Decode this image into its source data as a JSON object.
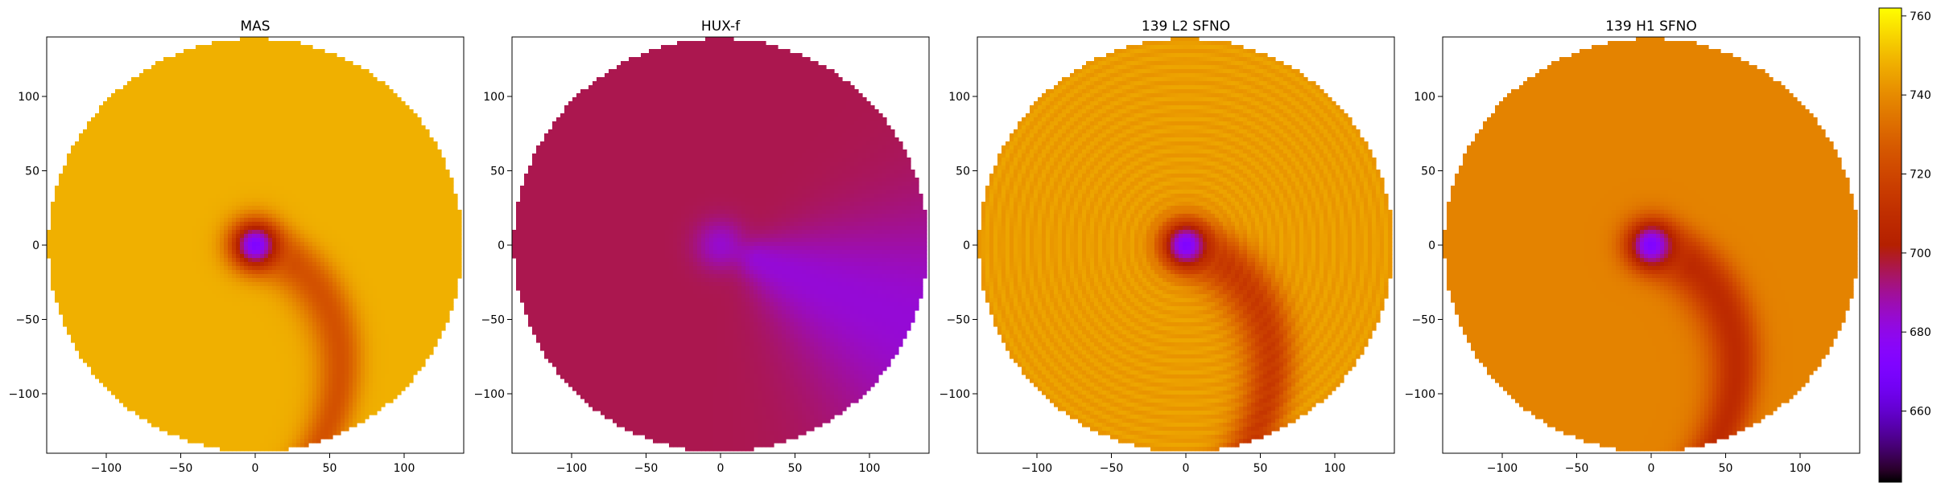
{
  "chart_data": [
    {
      "type": "heatmap",
      "title": "MAS",
      "xlim": [
        -140,
        140
      ],
      "ylim": [
        -140,
        140
      ],
      "xticks": [
        -100,
        -50,
        0,
        50,
        100
      ],
      "yticks": [
        -100,
        -50,
        0,
        50,
        100
      ],
      "background_value": 748,
      "center_value": 672,
      "features": [
        {
          "kind": "spiral_band",
          "value": 718,
          "strength": 0.8,
          "width": 18
        }
      ]
    },
    {
      "type": "heatmap",
      "title": "HUX-f",
      "xlim": [
        -140,
        140
      ],
      "ylim": [
        -140,
        140
      ],
      "xticks": [
        -100,
        -50,
        0,
        50,
        100
      ],
      "yticks": [
        -100,
        -50,
        0,
        50,
        100
      ],
      "background_value": 696,
      "center_value": 684,
      "features": [
        {
          "kind": "wedge",
          "value": 683,
          "angle_deg": -22,
          "spread_deg": 30
        }
      ]
    },
    {
      "type": "heatmap",
      "title": "139 L2 SFNO",
      "xlim": [
        -140,
        140
      ],
      "ylim": [
        -140,
        140
      ],
      "xticks": [
        -100,
        -50,
        0,
        50,
        100
      ],
      "yticks": [
        -100,
        -50,
        0,
        50,
        100
      ],
      "background_value": 744,
      "center_value": 672,
      "features": [
        {
          "kind": "spiral_band",
          "value": 712,
          "strength": 0.9,
          "width": 20
        },
        {
          "kind": "ring_texture",
          "amplitude": 4
        }
      ]
    },
    {
      "type": "heatmap",
      "title": "139 H1 SFNO",
      "xlim": [
        -140,
        140
      ],
      "ylim": [
        -140,
        140
      ],
      "xticks": [
        -100,
        -50,
        0,
        50,
        100
      ],
      "yticks": [
        -100,
        -50,
        0,
        50,
        100
      ],
      "background_value": 738,
      "center_value": 672,
      "features": [
        {
          "kind": "spiral_band",
          "value": 708,
          "strength": 1.0,
          "width": 20
        }
      ]
    }
  ],
  "colorbar": {
    "colormap": "gnuplot",
    "vmin": 642,
    "vmax": 762,
    "ticks": [
      660,
      680,
      700,
      720,
      740,
      760
    ]
  }
}
